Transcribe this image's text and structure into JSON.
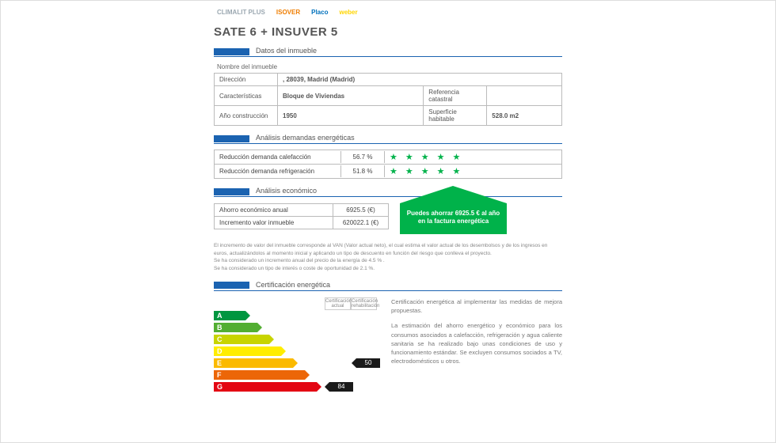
{
  "accent_color": "#1b63b1",
  "star_color": "#00b24a",
  "logos": [
    "CLIMALIT PLUS",
    "ISOVER",
    "Placo",
    "weber"
  ],
  "logo_colors": [
    "#9aa7b0",
    "#ef7d00",
    "#0071bc",
    "#ffd500"
  ],
  "title": "SATE 6 + INSUVER 5",
  "sections": {
    "property": "Datos del inmueble",
    "demand": "Análisis demandas energéticas",
    "economic": "Análisis económico",
    "cert": "Certificación energética"
  },
  "property": {
    "name_label": "Nombre del inmueble",
    "rows": [
      {
        "l1": "Dirección",
        "v1": ", 28039, Madrid (Madrid)",
        "colspan": 3
      },
      {
        "l1": "Características",
        "v1": "Bloque de Viviendas",
        "l2": "Referencia catastral",
        "v2": ""
      },
      {
        "l1": "Año construcción",
        "v1": "1950",
        "l2": "Superficie habitable",
        "v2": "528.0 m2"
      }
    ]
  },
  "demand": [
    {
      "label": "Reducción demanda calefacción",
      "value": "56.7 %",
      "stars": 5
    },
    {
      "label": "Reducción demanda refrigeración",
      "value": "51.8 %",
      "stars": 5
    }
  ],
  "economic": {
    "rows": [
      {
        "label": "Ahorro económico anual",
        "value": "6925.5 (€)"
      },
      {
        "label": "Incremento valor inmueble",
        "value": "620022.1 (€)"
      }
    ],
    "arrow_text": "Puedes ahorrar 6925.5 € al año en la factura energética",
    "arrow_color": "#00b24a"
  },
  "fineprint": [
    "El incremento de valor del inmueble corresponde al VAN (Valor actual neto), el cual estima el valor actual de los desembolsos y de los ingresos en euros, actualizándolos al momento inicial y aplicando un tipo de descuento en función del riesgo que conlleva el proyecto.",
    "Se ha considerado un incremento anual del precio de la energía de 4.5 % .",
    "Se ha considerado un tipo de interés o coste de oportunidad de 2.1 %."
  ],
  "certification": {
    "col_headers": [
      "Certificación actual",
      "Certificación rehabilitación"
    ],
    "bars": [
      {
        "letter": "A",
        "width": 40,
        "color": "#009640"
      },
      {
        "letter": "B",
        "width": 55,
        "color": "#52ae32"
      },
      {
        "letter": "C",
        "width": 70,
        "color": "#c8d400"
      },
      {
        "letter": "D",
        "width": 85,
        "color": "#ffed00"
      },
      {
        "letter": "E",
        "width": 100,
        "color": "#fbba00",
        "value_rehab": "50"
      },
      {
        "letter": "F",
        "width": 115,
        "color": "#ec6608"
      },
      {
        "letter": "G",
        "width": 130,
        "color": "#e30613",
        "value_actual": "84"
      }
    ],
    "text": [
      "Certificación energética al implementar las medidas de mejora propuestas.",
      "La estimación del ahorro energético y económico para los consumos asociados a calefacción, refrigeración y agua caliente sanitaria se ha realizado bajo unas condiciones de uso y funcionamiento estándar. Se excluyen consumos sociados a TV, electrodomésticos u otros."
    ]
  }
}
